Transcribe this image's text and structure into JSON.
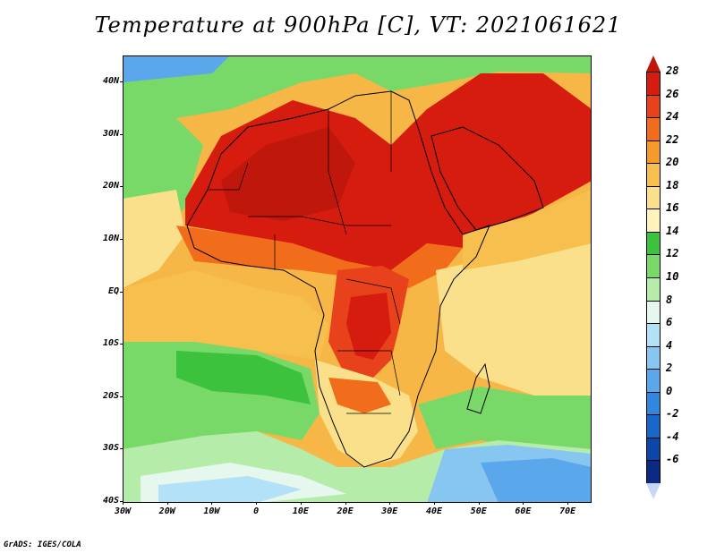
{
  "title": "Temperature at 900hPa [C], VT: 2021061621",
  "credit": "GrADS: IGES/COLA",
  "map": {
    "projection": "lat-lon",
    "lon_range": [
      -30,
      75
    ],
    "lat_range": [
      -40,
      45
    ],
    "lat_labels": [
      "40N",
      "30N",
      "20N",
      "10N",
      "EQ",
      "10S",
      "20S",
      "30S",
      "40S"
    ],
    "lat_values": [
      40,
      30,
      20,
      10,
      0,
      -10,
      -20,
      -30,
      -40
    ],
    "lon_labels": [
      "30W",
      "20W",
      "10W",
      "0",
      "10E",
      "20E",
      "30E",
      "40E",
      "50E",
      "60E",
      "70E"
    ],
    "lon_values": [
      -30,
      -20,
      -10,
      0,
      10,
      20,
      30,
      40,
      50,
      60,
      70
    ]
  },
  "colorbar": {
    "labels": [
      "28",
      "26",
      "24",
      "22",
      "20",
      "18",
      "16",
      "14",
      "12",
      "10",
      "8",
      "6",
      "4",
      "2",
      "0",
      "-2",
      "-4",
      "-6"
    ],
    "colors": [
      "#d61b0f",
      "#e8421c",
      "#f16d1c",
      "#f79a2c",
      "#f7bf4d",
      "#fbe08c",
      "#fdf3bb",
      "#3cc23c",
      "#79d968",
      "#b6ecaa",
      "#e6f8ee",
      "#b2e1f8",
      "#86c6f1",
      "#5aa7eb",
      "#2f87e0",
      "#1766c9",
      "#0c46a8",
      "#0a2a86"
    ],
    "top_cap_color": "#c0170d",
    "bottom_cap_color": "#c7d6f7"
  }
}
